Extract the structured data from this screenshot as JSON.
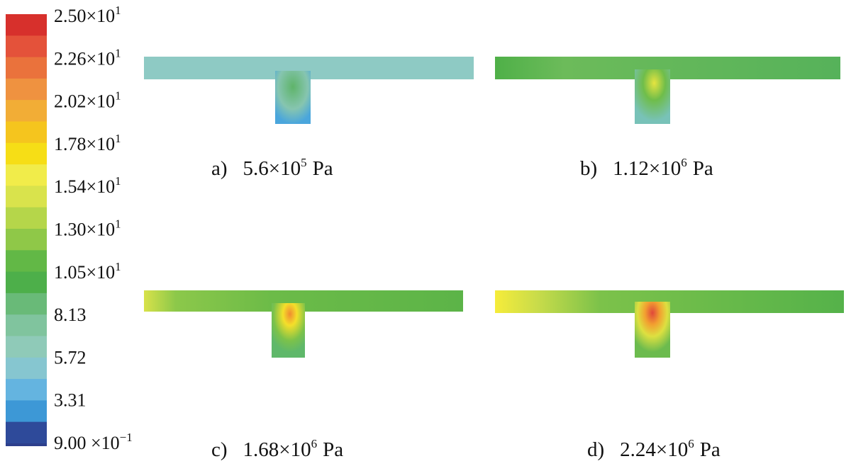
{
  "colorbar": {
    "labels": [
      {
        "base": "2.50×10",
        "exp": "1"
      },
      {
        "base": "2.26×10",
        "exp": "1"
      },
      {
        "base": "2.02×10",
        "exp": "1"
      },
      {
        "base": "1.78×10",
        "exp": "1"
      },
      {
        "base": "1.54×10",
        "exp": "1"
      },
      {
        "base": "1.30×10",
        "exp": "1"
      },
      {
        "base": "1.05×10",
        "exp": "1"
      },
      {
        "base": "8.13"
      },
      {
        "base": "5.72"
      },
      {
        "base": "3.31"
      },
      {
        "base": "9.00 ×10",
        "exp": "−1"
      }
    ]
  },
  "panels": [
    {
      "letter": "a)",
      "base": "5.6×10",
      "exp": "5",
      "unit": "Pa"
    },
    {
      "letter": "b)",
      "base": "1.12×10",
      "exp": "6",
      "unit": "Pa"
    },
    {
      "letter": "c)",
      "base": "1.68×10",
      "exp": "6",
      "unit": "Pa"
    },
    {
      "letter": "d)",
      "base": "2.24×10",
      "exp": "6",
      "unit": "Pa"
    }
  ]
}
